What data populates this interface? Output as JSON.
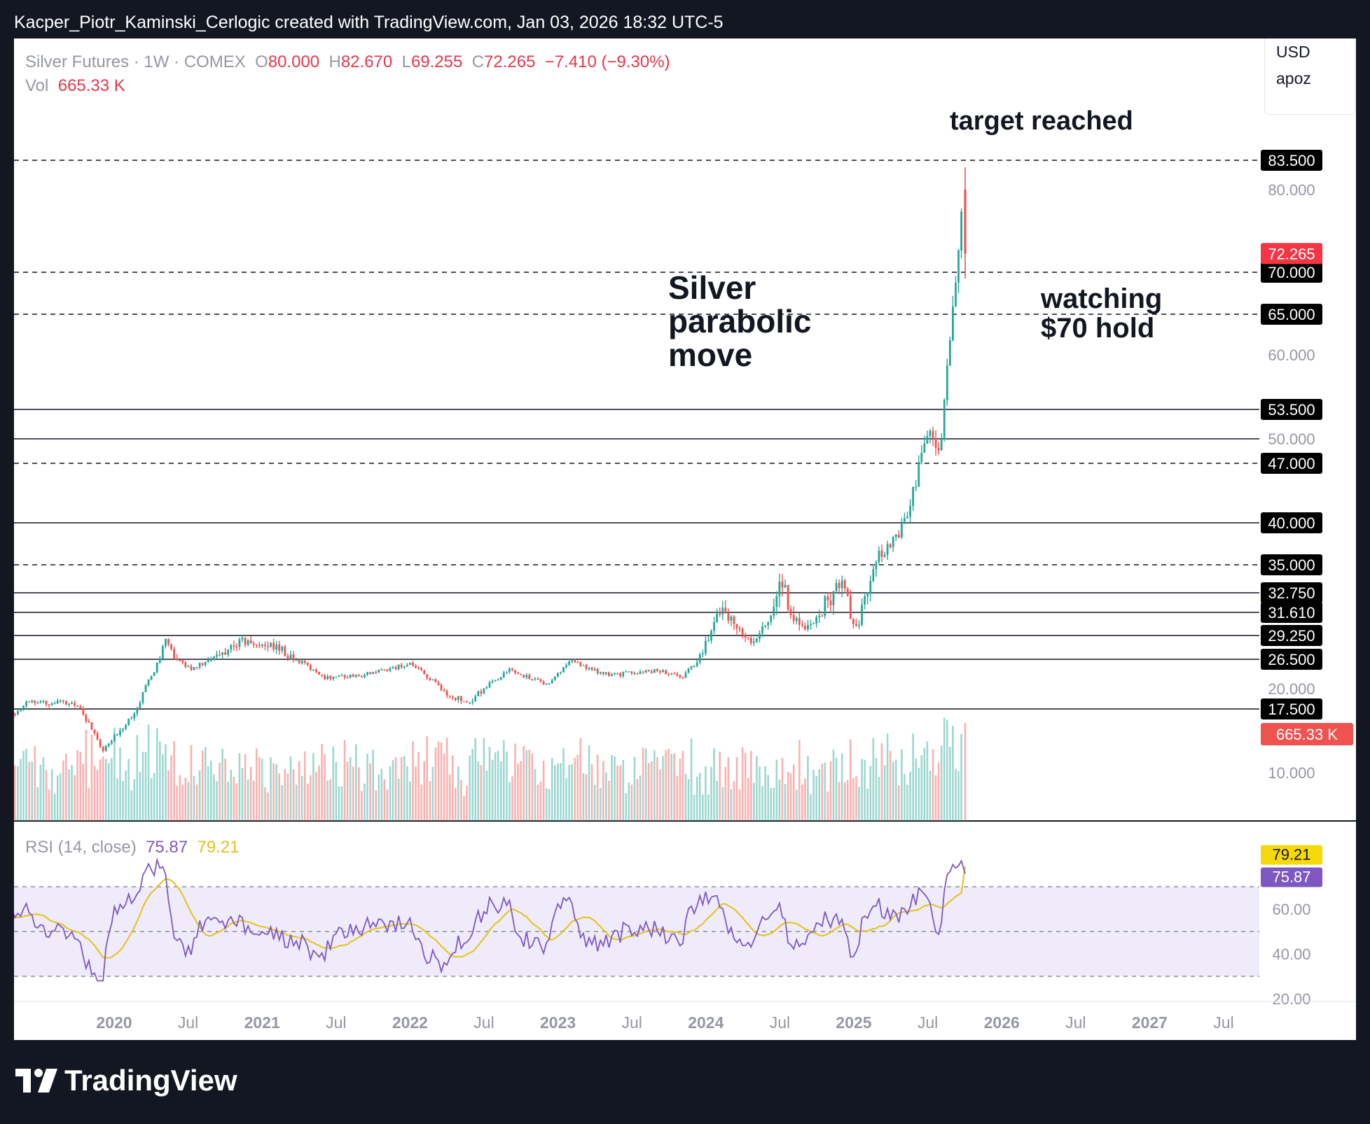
{
  "header": {
    "title": "Kacper_Piotr_Kaminski_Cerlogic created with TradingView.com, Jan 03, 2026 18:32 UTC-5"
  },
  "legend": {
    "symbol": "Silver Futures · 1W · COMEX",
    "o_label": "O",
    "o": "80.000",
    "h_label": "H",
    "h": "82.670",
    "l_label": "L",
    "l": "69.255",
    "c_label": "C",
    "c": "72.265",
    "change": "−7.410 (−9.30%)",
    "vol_label": "Vol",
    "vol": "665.33 K"
  },
  "currency_box": {
    "currency": "USD",
    "user": "apoz"
  },
  "rsi_legend": {
    "label": "RSI (14, close)",
    "rsi": "75.87",
    "ma": "79.21"
  },
  "annotations": {
    "target": "target reached",
    "parabolic": [
      "Silver",
      "parabolic",
      "move"
    ],
    "watching": [
      "watching",
      "$70 hold"
    ]
  },
  "footer": {
    "brand": "TradingView"
  },
  "colors": {
    "up": "#26a69a",
    "down": "#ef5350",
    "rsi": "#7e57c2",
    "rsi_ma": "#e3c21a",
    "rsi_band": "#efebfa",
    "price_tag": "#f23645",
    "black_tag": "#000000"
  },
  "chart_data": {
    "type": "candlestick",
    "symbol": "Silver Futures",
    "interval": "1W",
    "exchange": "COMEX",
    "y_axis_ticks": [
      "80.000",
      "60.000",
      "50.000",
      "20.000",
      "10.000"
    ],
    "x_axis_ticks": [
      "2020",
      "Jul",
      "2021",
      "Jul",
      "2022",
      "Jul",
      "2023",
      "Jul",
      "2024",
      "Jul",
      "2025",
      "Jul",
      "2026",
      "Jul",
      "2027",
      "Jul"
    ],
    "horizontal_levels": [
      {
        "value": 83.5,
        "label": "83.500",
        "style": "dashed"
      },
      {
        "value": 70.0,
        "label": "70.000",
        "style": "dashed"
      },
      {
        "value": 65.0,
        "label": "65.000",
        "style": "dashed"
      },
      {
        "value": 53.5,
        "label": "53.500",
        "style": "solid"
      },
      {
        "value": 50.0,
        "label": "",
        "style": "solid"
      },
      {
        "value": 47.0,
        "label": "47.000",
        "style": "dashed"
      },
      {
        "value": 40.0,
        "label": "40.000",
        "style": "solid"
      },
      {
        "value": 35.0,
        "label": "35.000",
        "style": "dashed"
      },
      {
        "value": 32.75,
        "label": "32.750",
        "style": "solid"
      },
      {
        "value": 31.61,
        "label": "31.610",
        "style": "solid"
      },
      {
        "value": 29.25,
        "label": "29.250",
        "style": "solid"
      },
      {
        "value": 26.5,
        "label": "26.500",
        "style": "solid"
      },
      {
        "value": 17.5,
        "label": "17.500",
        "style": "solid"
      }
    ],
    "last_price": {
      "value": 72.265,
      "label": "72.265"
    },
    "last_volume_label": "665.33 K",
    "price_path": [
      {
        "date": "2019-06",
        "close": 15.0
      },
      {
        "date": "2019-09",
        "close": 18.5
      },
      {
        "date": "2020-01",
        "close": 18.0
      },
      {
        "date": "2020-03",
        "close": 12.5
      },
      {
        "date": "2020-06",
        "close": 18.0
      },
      {
        "date": "2020-08",
        "close": 28.5
      },
      {
        "date": "2020-10",
        "close": 24.5
      },
      {
        "date": "2021-02",
        "close": 28.5
      },
      {
        "date": "2021-05",
        "close": 28.0
      },
      {
        "date": "2021-07",
        "close": 26.0
      },
      {
        "date": "2021-09",
        "close": 22.5
      },
      {
        "date": "2021-12",
        "close": 23.0
      },
      {
        "date": "2022-04",
        "close": 25.5
      },
      {
        "date": "2022-07",
        "close": 19.0
      },
      {
        "date": "2022-09",
        "close": 18.5
      },
      {
        "date": "2022-12",
        "close": 24.0
      },
      {
        "date": "2023-03",
        "close": 21.0
      },
      {
        "date": "2023-05",
        "close": 26.0
      },
      {
        "date": "2023-08",
        "close": 23.0
      },
      {
        "date": "2023-12",
        "close": 24.0
      },
      {
        "date": "2024-02",
        "close": 22.5
      },
      {
        "date": "2024-04",
        "close": 28.5
      },
      {
        "date": "2024-05",
        "close": 32.0
      },
      {
        "date": "2024-08",
        "close": 28.5
      },
      {
        "date": "2024-10",
        "close": 33.5
      },
      {
        "date": "2024-12",
        "close": 29.5
      },
      {
        "date": "2025-03",
        "close": 34.0
      },
      {
        "date": "2025-04",
        "close": 29.5
      },
      {
        "date": "2025-06",
        "close": 36.0
      },
      {
        "date": "2025-08",
        "close": 39.5
      },
      {
        "date": "2025-10",
        "close": 50.5
      },
      {
        "date": "2025-11",
        "close": 49.0
      },
      {
        "date": "2025-12",
        "close": 66.0
      },
      {
        "date": "2025-12-28",
        "close": 80.0
      },
      {
        "date": "2026-01",
        "open": 80.0,
        "high": 82.67,
        "low": 69.255,
        "close": 72.265
      }
    ],
    "rsi": {
      "period": 14,
      "source": "close",
      "last": 75.87,
      "ma_last": 79.21,
      "levels": [
        70,
        50,
        30
      ],
      "axis_ticks": [
        "60.00",
        "40.00",
        "20.00"
      ]
    }
  }
}
